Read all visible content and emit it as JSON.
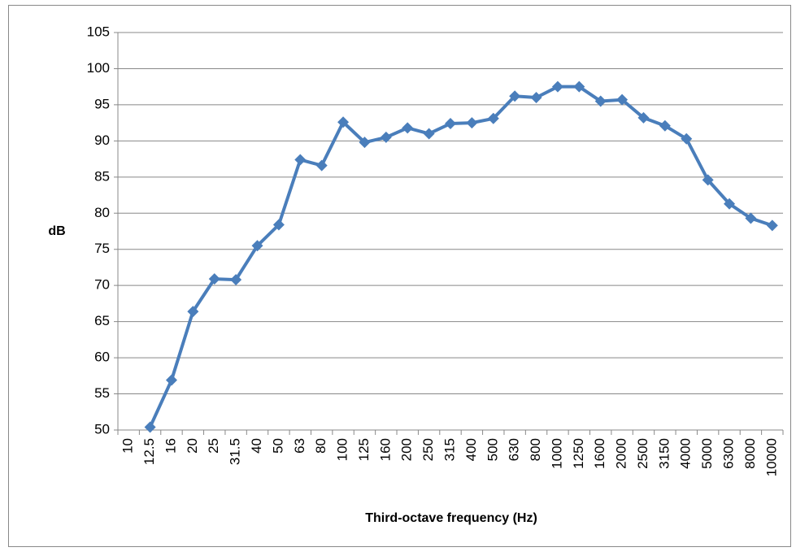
{
  "chart_data": {
    "type": "line",
    "x_label": "Third-octave frequency (Hz)",
    "y_label": "dB",
    "categories": [
      "10",
      "12.5",
      "16",
      "20",
      "25",
      "31.5",
      "40",
      "50",
      "63",
      "80",
      "100",
      "125",
      "160",
      "200",
      "250",
      "315",
      "400",
      "500",
      "630",
      "800",
      "1000",
      "1250",
      "1600",
      "2000",
      "2500",
      "3150",
      "4000",
      "5000",
      "6300",
      "8000",
      "10000"
    ],
    "series": [
      {
        "color": "#4a7ebb",
        "values": [
          null,
          50.4,
          56.9,
          66.4,
          70.9,
          70.8,
          75.5,
          78.4,
          87.4,
          86.6,
          92.6,
          89.8,
          90.5,
          91.8,
          91.0,
          92.4,
          92.5,
          93.1,
          96.2,
          96.0,
          97.5,
          97.5,
          95.5,
          95.7,
          93.2,
          92.1,
          90.3,
          84.6,
          81.3,
          79.3,
          78.3
        ]
      }
    ],
    "ylim": [
      50,
      105
    ],
    "yticks": [
      50,
      55,
      60,
      65,
      70,
      75,
      80,
      85,
      90,
      95,
      100,
      105
    ],
    "grid": true
  }
}
